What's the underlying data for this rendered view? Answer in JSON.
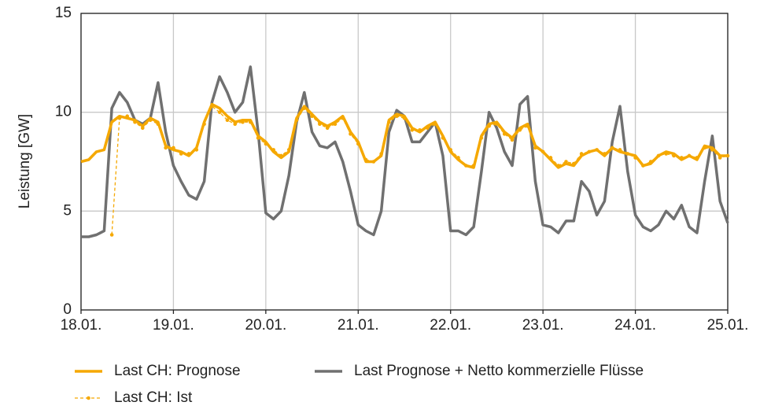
{
  "chart_data": {
    "type": "line",
    "y_label": "Leistung [GW]",
    "x": [
      0,
      2,
      4,
      6,
      8,
      10,
      12,
      14,
      16,
      18,
      20,
      22,
      24,
      26,
      28,
      30,
      32,
      34,
      36,
      38,
      40,
      42,
      44,
      46,
      48,
      50,
      52,
      54,
      56,
      58,
      60,
      62,
      64,
      66,
      68,
      70,
      72,
      74,
      76,
      78,
      80,
      82,
      84,
      86,
      88,
      90,
      92,
      94,
      96,
      98,
      100,
      102,
      104,
      106,
      108,
      110,
      112,
      114,
      116,
      118,
      120,
      122,
      124,
      126,
      128,
      130,
      132,
      134,
      136,
      138,
      140,
      142,
      144,
      146,
      148,
      150,
      152,
      154,
      156,
      158,
      160,
      162,
      164,
      166,
      168
    ],
    "series": [
      {
        "name": "Last CH: Prognose",
        "color": "#f5a800",
        "style": "solid",
        "values": [
          7.5,
          7.6,
          8.0,
          8.1,
          9.5,
          9.8,
          9.7,
          9.6,
          9.3,
          9.7,
          9.5,
          8.3,
          8.1,
          8.0,
          7.8,
          8.2,
          9.5,
          10.4,
          10.2,
          9.8,
          9.5,
          9.6,
          9.6,
          8.8,
          8.5,
          8.0,
          7.7,
          8.0,
          9.7,
          10.3,
          9.9,
          9.5,
          9.3,
          9.5,
          9.8,
          9.0,
          8.5,
          7.5,
          7.5,
          7.8,
          9.6,
          9.9,
          9.8,
          9.2,
          9.0,
          9.3,
          9.5,
          8.8,
          8.0,
          7.6,
          7.3,
          7.2,
          8.8,
          9.4,
          9.5,
          9.0,
          8.7,
          9.2,
          9.4,
          8.3,
          8.0,
          7.6,
          7.2,
          7.4,
          7.3,
          7.8,
          8.0,
          8.1,
          7.8,
          8.2,
          8.0,
          7.9,
          7.8,
          7.3,
          7.4,
          7.8,
          8.0,
          7.9,
          7.6,
          7.8,
          7.6,
          8.3,
          8.2,
          7.8,
          7.8
        ]
      },
      {
        "name": "Last CH: Ist",
        "color": "#f5a800",
        "style": "dashed",
        "values": [
          null,
          null,
          null,
          null,
          3.8,
          9.7,
          9.8,
          9.5,
          9.2,
          9.6,
          9.4,
          8.2,
          8.2,
          7.9,
          7.9,
          8.1,
          9.4,
          10.3,
          10.0,
          9.6,
          9.4,
          9.5,
          9.5,
          8.7,
          8.4,
          8.1,
          7.8,
          8.1,
          9.6,
          10.2,
          9.8,
          9.4,
          9.2,
          9.4,
          9.7,
          8.9,
          8.4,
          7.6,
          7.5,
          7.9,
          9.5,
          9.8,
          9.7,
          9.1,
          9.1,
          9.2,
          9.4,
          8.7,
          8.1,
          7.7,
          7.3,
          7.3,
          8.7,
          9.3,
          9.4,
          8.9,
          8.6,
          9.1,
          9.3,
          8.2,
          8.0,
          7.7,
          7.3,
          7.5,
          7.4,
          7.9,
          8.0,
          8.1,
          7.9,
          8.2,
          8.1,
          7.9,
          7.7,
          7.3,
          7.5,
          7.8,
          7.9,
          7.8,
          7.7,
          7.8,
          7.7,
          8.2,
          8.1,
          7.7,
          7.8
        ]
      },
      {
        "name": "Last Prognose + Netto kommerzielle Flüsse",
        "color": "#707070",
        "style": "solid",
        "values": [
          3.7,
          3.7,
          3.8,
          4.0,
          10.2,
          11.0,
          10.5,
          9.6,
          9.4,
          9.7,
          11.5,
          9.0,
          7.3,
          6.5,
          5.8,
          5.6,
          6.5,
          10.5,
          11.8,
          11.0,
          10.0,
          10.5,
          12.3,
          9.0,
          4.9,
          4.6,
          5.0,
          6.8,
          9.5,
          11.0,
          9.0,
          8.3,
          8.2,
          8.5,
          7.5,
          6.0,
          4.3,
          4.0,
          3.8,
          5.0,
          9.0,
          10.1,
          9.8,
          8.5,
          8.5,
          9.0,
          9.5,
          7.8,
          4.0,
          4.0,
          3.8,
          4.2,
          7.0,
          10.0,
          9.2,
          8.0,
          7.3,
          10.4,
          10.8,
          6.5,
          4.3,
          4.2,
          3.9,
          4.5,
          4.5,
          6.5,
          6.0,
          4.8,
          5.5,
          8.5,
          10.3,
          7.0,
          4.8,
          4.2,
          4.0,
          4.3,
          5.0,
          4.6,
          5.3,
          4.2,
          3.9,
          6.5,
          8.8,
          5.5,
          4.4
        ]
      }
    ],
    "xlim": [
      0,
      168
    ],
    "xticks": [
      {
        "value": 0,
        "label": "18.01."
      },
      {
        "value": 24,
        "label": "19.01."
      },
      {
        "value": 48,
        "label": "20.01."
      },
      {
        "value": 72,
        "label": "21.01."
      },
      {
        "value": 96,
        "label": "22.01."
      },
      {
        "value": 120,
        "label": "23.01."
      },
      {
        "value": 144,
        "label": "24.01."
      },
      {
        "value": 168,
        "label": "25.01."
      }
    ],
    "ylim": [
      0,
      15
    ],
    "yticks": [
      0,
      5,
      10,
      15
    ],
    "grid": true,
    "legend": "bottom"
  }
}
